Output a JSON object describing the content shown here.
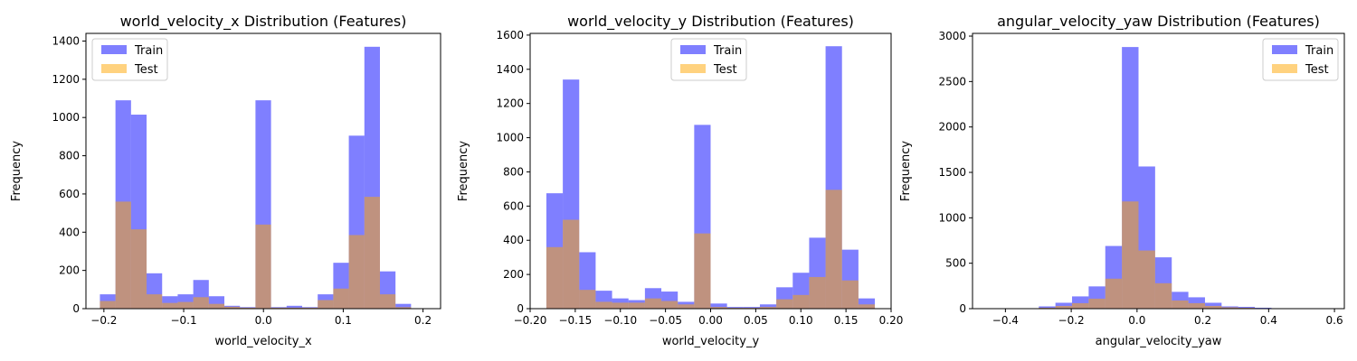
{
  "chart_data": [
    {
      "type": "bar",
      "title": "world_velocity_x Distribution (Features)",
      "xlabel": "world_velocity_x",
      "ylabel": "Frequency",
      "xlim": [
        -0.2225,
        0.222
      ],
      "ylim": [
        0,
        1440
      ],
      "bin_start": -0.205,
      "bin_width": 0.0195,
      "xticks": [
        -0.2,
        -0.1,
        0.0,
        0.1,
        0.2
      ],
      "xtick_labels": [
        "−0.2",
        "−0.1",
        "0.0",
        "0.1",
        "0.2"
      ],
      "yticks": [
        0,
        200,
        400,
        600,
        800,
        1000,
        1200,
        1400
      ],
      "ytick_labels": [
        "0",
        "200",
        "400",
        "600",
        "800",
        "1000",
        "1200",
        "1400"
      ],
      "legend_position": "upper-left",
      "series": [
        {
          "name": "Train",
          "color": "#0000ff",
          "opacity": 0.5,
          "values": [
            75,
            1090,
            1015,
            185,
            65,
            75,
            150,
            65,
            15,
            8,
            1090,
            8,
            15,
            8,
            75,
            240,
            905,
            1370,
            195,
            25
          ]
        },
        {
          "name": "Test",
          "color": "#ffa500",
          "opacity": 0.5,
          "values": [
            40,
            560,
            415,
            75,
            30,
            35,
            60,
            25,
            10,
            5,
            440,
            5,
            5,
            5,
            45,
            105,
            385,
            585,
            75,
            8
          ]
        }
      ]
    },
    {
      "type": "bar",
      "title": "world_velocity_y Distribution (Features)",
      "xlabel": "world_velocity_y",
      "ylabel": "Frequency",
      "xlim": [
        -0.2,
        0.2
      ],
      "ylim": [
        0,
        1610
      ],
      "bin_start": -0.182,
      "bin_width": 0.0182,
      "xticks": [
        -0.2,
        -0.15,
        -0.1,
        -0.05,
        0.0,
        0.05,
        0.1,
        0.15,
        0.2
      ],
      "xtick_labels": [
        "−0.20",
        "−0.15",
        "−0.10",
        "−0.05",
        "0.00",
        "0.05",
        "0.10",
        "0.15",
        "0.20"
      ],
      "yticks": [
        0,
        200,
        400,
        600,
        800,
        1000,
        1200,
        1400,
        1600
      ],
      "ytick_labels": [
        "0",
        "200",
        "400",
        "600",
        "800",
        "1000",
        "1200",
        "1400",
        "1600"
      ],
      "legend_position": "upper-center",
      "series": [
        {
          "name": "Train",
          "color": "#0000ff",
          "opacity": 0.5,
          "values": [
            675,
            1340,
            330,
            105,
            60,
            50,
            120,
            100,
            40,
            1075,
            30,
            10,
            10,
            25,
            125,
            210,
            415,
            1535,
            345,
            60
          ]
        },
        {
          "name": "Test",
          "color": "#ffa500",
          "opacity": 0.5,
          "values": [
            360,
            520,
            110,
            40,
            35,
            35,
            60,
            45,
            25,
            440,
            10,
            5,
            5,
            10,
            55,
            80,
            185,
            695,
            165,
            25
          ]
        }
      ]
    },
    {
      "type": "bar",
      "title": "angular_velocity_yaw Distribution (Features)",
      "xlabel": "angular_velocity_yaw",
      "ylabel": "Frequency",
      "xlim": [
        -0.5,
        0.63
      ],
      "ylim": [
        0,
        3030
      ],
      "bin_start": -0.45,
      "bin_width": 0.0505,
      "xticks": [
        -0.4,
        -0.2,
        0.0,
        0.2,
        0.4,
        0.6
      ],
      "xtick_labels": [
        "−0.4",
        "−0.2",
        "0.0",
        "0.2",
        "0.4",
        "0.6"
      ],
      "yticks": [
        0,
        500,
        1000,
        1500,
        2000,
        2500,
        3000
      ],
      "ytick_labels": [
        "0",
        "500",
        "1000",
        "1500",
        "2000",
        "2500",
        "3000"
      ],
      "legend_position": "upper-right",
      "series": [
        {
          "name": "Train",
          "color": "#0000ff",
          "opacity": 0.5,
          "values": [
            5,
            5,
            5,
            25,
            65,
            135,
            245,
            690,
            2880,
            1565,
            565,
            185,
            125,
            65,
            25,
            20,
            10,
            5,
            5,
            3
          ]
        },
        {
          "name": "Test",
          "color": "#ffa500",
          "opacity": 0.5,
          "values": [
            3,
            3,
            3,
            10,
            30,
            60,
            110,
            330,
            1180,
            640,
            280,
            90,
            60,
            30,
            15,
            10,
            5,
            3,
            3,
            1
          ]
        }
      ]
    }
  ]
}
